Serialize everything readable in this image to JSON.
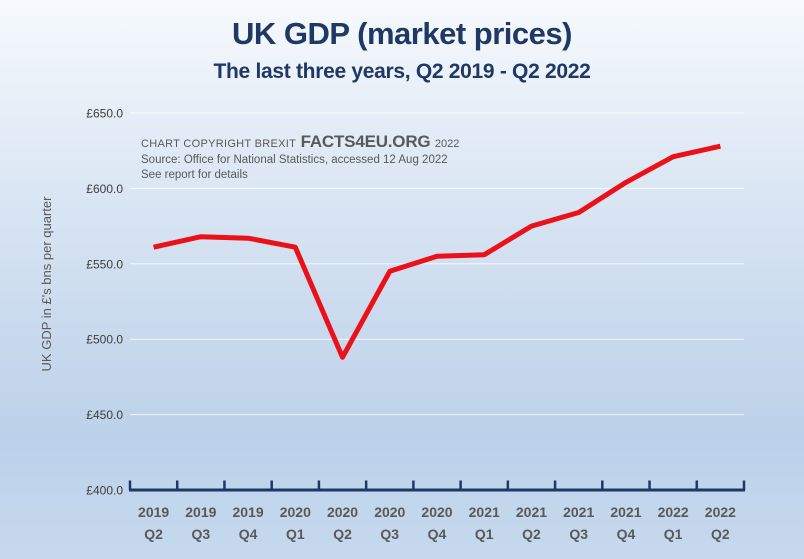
{
  "header": {
    "title": "UK GDP (market prices)",
    "subtitle": "The last three years, Q2 2019 - Q2 2022"
  },
  "copyright": {
    "prefix": "CHART COPYRIGHT BREXIT",
    "brand": "FACTS4EU.ORG",
    "year": "2022",
    "source": "Source: Office for National Statistics, accessed 12 Aug 2022",
    "note": "See report for details"
  },
  "chart_data": {
    "type": "line",
    "title": "UK GDP (market prices)",
    "subtitle": "The last three years, Q2 2019 - Q2 2022",
    "series_name": "UK GDP (market prices), £bn per quarter",
    "categories": [
      "2019 Q2",
      "2019 Q3",
      "2019 Q4",
      "2020 Q1",
      "2020 Q2",
      "2020 Q3",
      "2020 Q4",
      "2021 Q1",
      "2021 Q2",
      "2021 Q3",
      "2021 Q4",
      "2022 Q1",
      "2022 Q2"
    ],
    "values": [
      561,
      568,
      567,
      561,
      488,
      545,
      555,
      556,
      575,
      584,
      604,
      621,
      628
    ],
    "xlabel": "",
    "ylabel": "UK GDP in £'s bns per quarter",
    "ylim": [
      400,
      650
    ],
    "yticks": [
      {
        "label": "£400.0",
        "value": 400
      },
      {
        "label": "£450.0",
        "value": 450
      },
      {
        "label": "£500.0",
        "value": 500
      },
      {
        "label": "£550.0",
        "value": 550
      },
      {
        "label": "£600.0",
        "value": 600
      },
      {
        "label": "£650.0",
        "value": 650
      }
    ],
    "grid": true,
    "legend": "none",
    "line_color": "#ec1018",
    "axis_color": "#1f3864",
    "title_color": "#1f3864"
  }
}
